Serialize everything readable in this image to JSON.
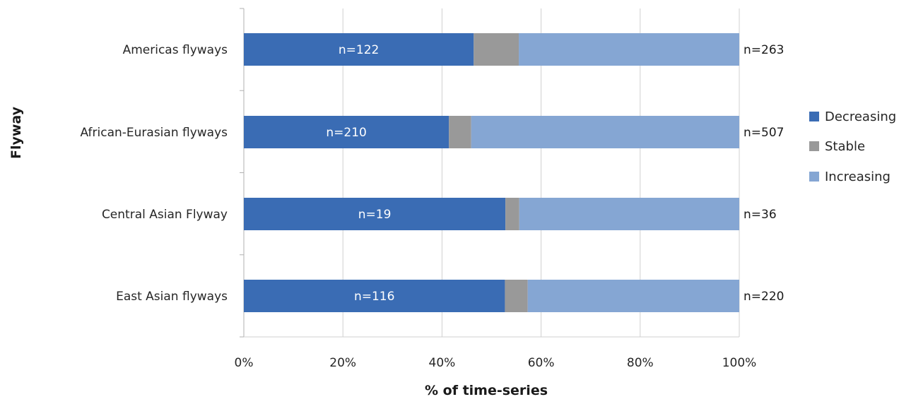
{
  "chart_data": {
    "type": "bar",
    "orientation": "horizontal",
    "stacked": "percent",
    "categories": [
      "Americas flyways",
      "African-Eurasian flyways",
      "Central Asian Flyway",
      "East Asian flyways"
    ],
    "series": [
      {
        "name": "Decreasing",
        "values": [
          46.4,
          41.4,
          52.8,
          52.7
        ],
        "color": "#3a6cb4"
      },
      {
        "name": "Stable",
        "values": [
          9.1,
          4.5,
          2.8,
          4.6
        ],
        "color": "#999999"
      },
      {
        "name": "Increasing",
        "values": [
          44.5,
          54.1,
          44.4,
          42.7
        ],
        "color": "#85a6d3"
      }
    ],
    "bar_labels": [
      "n=122",
      "n=210",
      "n=19",
      "n=116"
    ],
    "total_labels": [
      "n=263",
      "n=507",
      "n=36",
      "n=220"
    ],
    "xticks": [
      "0%",
      "20%",
      "40%",
      "60%",
      "80%",
      "100%"
    ],
    "xlim": [
      0,
      100
    ],
    "xlabel": "% of time-series",
    "ylabel": "Flyway",
    "grid": "vertical",
    "legend_position": "right"
  }
}
